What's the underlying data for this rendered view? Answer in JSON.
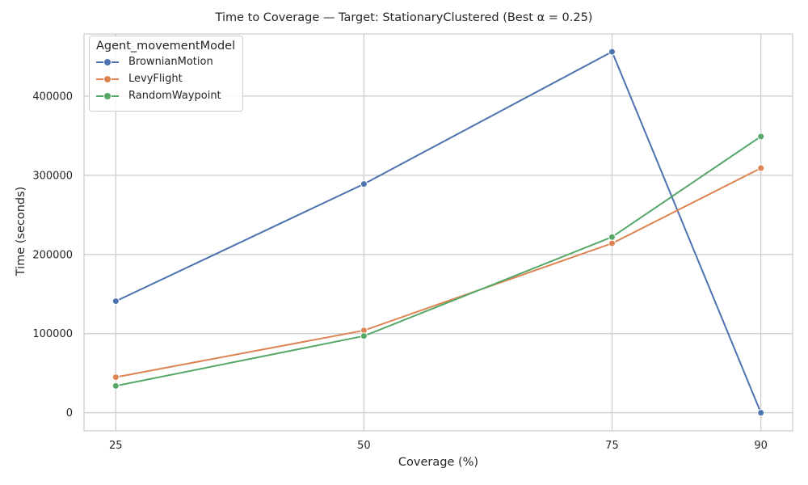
{
  "chart_data": {
    "type": "line",
    "title": "Time to Coverage — Target: StationaryClustered (Best α = 0.25)",
    "xlabel": "Coverage (%)",
    "ylabel": "Time (seconds)",
    "x": [
      25,
      50,
      75,
      90
    ],
    "x_tick_labels": [
      "25",
      "50",
      "75",
      "90"
    ],
    "y_ticks": [
      0,
      100000,
      200000,
      300000,
      400000
    ],
    "y_tick_labels": [
      "0",
      "100000",
      "200000",
      "300000",
      "400000"
    ],
    "xlim": [
      21.8,
      93.2
    ],
    "ylim": [
      -22800,
      478500
    ],
    "grid": true,
    "legend": {
      "title": "Agent_movementModel",
      "placement": "top-left"
    },
    "series": [
      {
        "name": "BrownianMotion",
        "color": "#4c72b0",
        "values": [
          141000,
          289000,
          456000,
          0
        ]
      },
      {
        "name": "LevyFlight",
        "color": "#dd8452",
        "values": [
          45000,
          104000,
          214000,
          309000
        ]
      },
      {
        "name": "RandomWaypoint",
        "color": "#55a868",
        "values": [
          34000,
          97000,
          222000,
          349000
        ]
      }
    ]
  }
}
